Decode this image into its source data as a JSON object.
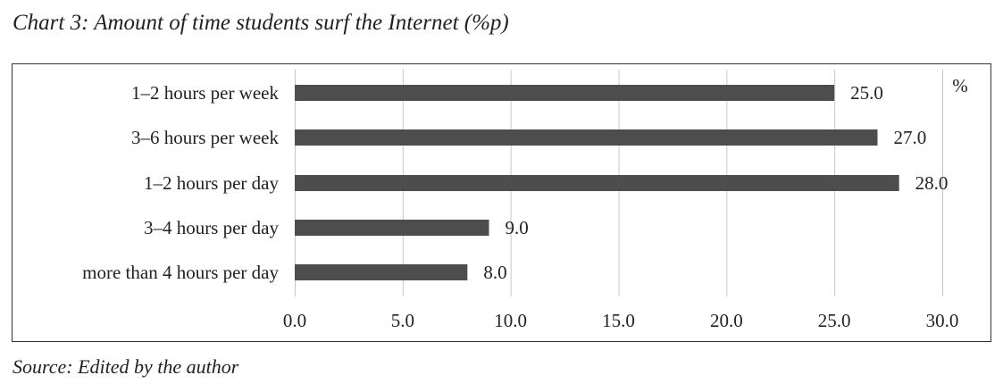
{
  "title": "Chart 3: Amount of time students surf the Internet (%p)",
  "source": "Source: Edited by the author",
  "chart_data": {
    "type": "bar",
    "orientation": "horizontal",
    "categories": [
      "1–2 hours per week",
      "3–6 hours per week",
      "1–2 hours per day",
      "3–4 hours per day",
      "more than 4 hours per day"
    ],
    "values": [
      25.0,
      27.0,
      28.0,
      9.0,
      8.0
    ],
    "value_labels": [
      "25.0",
      "27.0",
      "28.0",
      "9.0",
      "8.0"
    ],
    "unit": "%",
    "xlim": [
      0,
      30
    ],
    "xticks": [
      "0.0",
      "5.0",
      "10.0",
      "15.0",
      "20.0",
      "25.0",
      "30.0"
    ],
    "grid": "vertical",
    "legend": "none",
    "bar_color": "#4d4d4d",
    "grid_color": "#c8c8c8",
    "frame_color": "#333333"
  }
}
